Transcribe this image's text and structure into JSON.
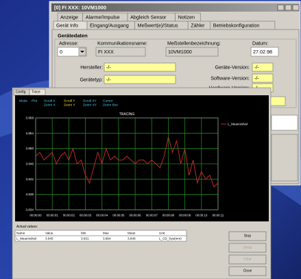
{
  "back_window": {
    "title": "[0] FI XXX: 10VM1000",
    "tabs_row1": [
      "Anzeige",
      "Alarme/Impulse",
      "Abgleich Sensor",
      "Notizen"
    ],
    "tabs_row2": [
      "Gerät Info",
      "Eingang/Ausgang",
      "Meßwert(e)/Status",
      "Zähler",
      "Betriebskonfiguration"
    ],
    "group": "Gerätedaten",
    "header_fields": [
      {
        "label": "Adresse:",
        "value": "0"
      },
      {
        "label": "Kommunikationsname:",
        "value": "FI XXX"
      },
      {
        "label": "Meßstellenbezeichnung:",
        "value": "10VM1000"
      },
      {
        "label": "Datum:",
        "value": "27.02.98"
      }
    ],
    "info_fields": [
      {
        "label": "Hersteller:",
        "value": "-/-"
      },
      {
        "label": "Gerätetyp:",
        "value": "-/-"
      },
      {
        "label": "Geräte-Version:",
        "value": "-/-"
      },
      {
        "label": "Software-Version:",
        "value": "-/-"
      },
      {
        "label": "Hardware-Version:",
        "value": "-/-"
      }
    ]
  },
  "trace_window": {
    "tabs": [
      "Config",
      "Trace"
    ],
    "toolbar": [
      {
        "lines": [
          "Mode"
        ],
        "color": "#4fd0f0"
      },
      {
        "lines": [
          "Plot"
        ],
        "color": "#4fd0f0"
      },
      {
        "lines": [
          "Scroll X",
          "Zoom X"
        ],
        "color": "#4fd0f0"
      },
      {
        "lines": [
          "Scroll Y",
          "Zoom Y"
        ],
        "color": "#f0e040"
      },
      {
        "lines": [
          "Scroll XY",
          "Zoom XY"
        ],
        "color": "#4fd0f0"
      },
      {
        "lines": [
          "Cursor",
          "Zoom Box"
        ],
        "color": "#4fd0f0"
      }
    ],
    "actual_values": {
      "label": "Actual values:",
      "columns": [
        "Name",
        "Value",
        "Min",
        "Max",
        "Mean",
        "Unit"
      ],
      "rows": [
        [
          "L_MeasValVal",
          "3.845",
          "3.831",
          "3.864",
          "3.848",
          "L_CD_Sys(mm)"
        ]
      ]
    },
    "buttons": [
      {
        "label": "Stop",
        "enabled": true
      },
      {
        "label": "Setup",
        "enabled": false
      },
      {
        "label": "Clear",
        "enabled": false
      },
      {
        "label": "Close",
        "enabled": true
      }
    ]
  },
  "chart_data": {
    "type": "line",
    "title": "TRACING",
    "grid": true,
    "x": [
      0,
      0.25,
      0.5,
      0.75,
      1,
      1.25,
      1.5,
      1.75,
      2,
      2.25,
      2.5,
      2.75,
      3,
      3.25,
      3.5,
      3.75,
      4,
      4.25,
      4.5,
      4.75,
      5,
      5.25,
      5.5,
      5.75,
      6,
      6.25,
      6.5,
      6.75,
      7,
      7.25,
      7.5,
      7.75,
      8,
      8.25,
      8.5,
      8.75,
      9,
      9.25,
      9.5,
      9.75,
      10,
      10.25,
      10.5,
      10.75,
      11
    ],
    "series": [
      {
        "name": "L_MeasValVal",
        "color": "#c0282c",
        "values": [
          3.848,
          3.849,
          3.847,
          3.848,
          3.849,
          3.846,
          3.848,
          3.849,
          3.847,
          3.85,
          3.846,
          3.847,
          3.843,
          3.841,
          3.845,
          3.849,
          3.846,
          3.85,
          3.847,
          3.848,
          3.847,
          3.847,
          3.848,
          3.847,
          3.846,
          3.847,
          3.847,
          3.846,
          3.847,
          3.846,
          3.845,
          3.848,
          3.853,
          3.849,
          3.852,
          3.846,
          3.85,
          3.843,
          3.847,
          3.841,
          3.844,
          3.842,
          3.843,
          3.84,
          3.841
        ]
      }
    ],
    "xlim": [
      0,
      11
    ],
    "xticks": [
      {
        "value": 0,
        "label": "00:00:00"
      },
      {
        "value": 1,
        "label": "00:00:01"
      },
      {
        "value": 2,
        "label": "00:00:02"
      },
      {
        "value": 3,
        "label": "00:00:03"
      },
      {
        "value": 4,
        "label": "00:00:04"
      },
      {
        "value": 5,
        "label": "00:00:05"
      },
      {
        "value": 6,
        "label": "00:00:06"
      },
      {
        "value": 7,
        "label": "00:00:07"
      },
      {
        "value": 8,
        "label": "00:00:08"
      },
      {
        "value": 9,
        "label": "00:00:09"
      },
      {
        "value": 10,
        "label": "00:00:10"
      },
      {
        "value": 11,
        "label": "00:00:11"
      }
    ],
    "ylim": [
      3.834,
      3.858
    ],
    "yticks": [
      3.834,
      3.838,
      3.842,
      3.846,
      {
        "value": 3.85,
        "label": "3.850"
      },
      3.854,
      3.858
    ]
  }
}
